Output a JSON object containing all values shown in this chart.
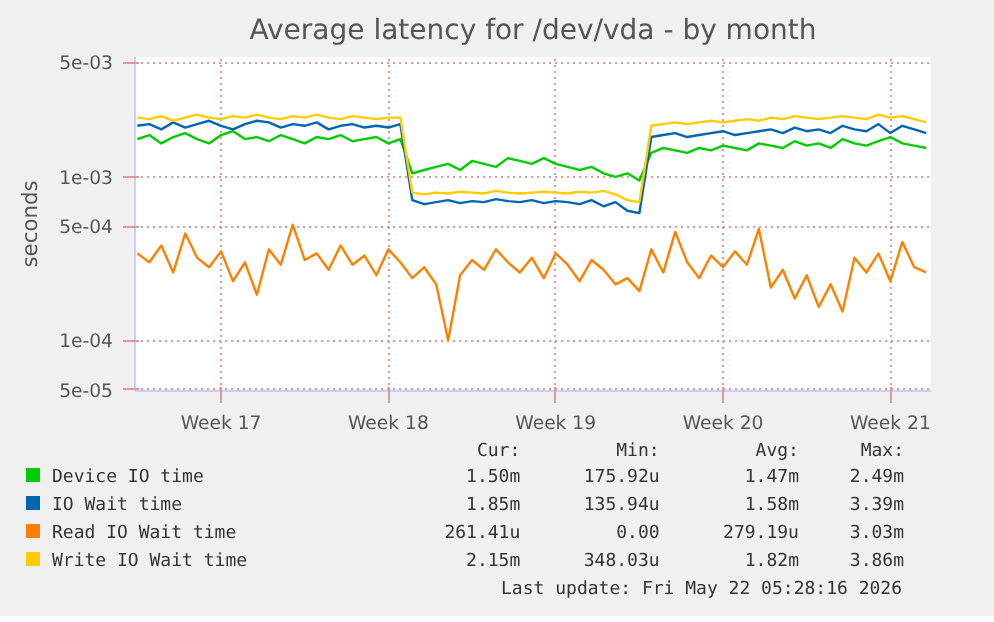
{
  "chart_data": {
    "type": "line",
    "title": "Average latency for /dev/vda - by month",
    "ylabel": "seconds",
    "categories": [
      null,
      null,
      null,
      null,
      null,
      null,
      null,
      "Week 17",
      null,
      null,
      null,
      null,
      null,
      null,
      null,
      null,
      null,
      null,
      null,
      null,
      null,
      "Week 18",
      null,
      null,
      null,
      null,
      null,
      null,
      null,
      null,
      null,
      null,
      null,
      null,
      null,
      "Week 19",
      null,
      null,
      null,
      null,
      null,
      null,
      null,
      null,
      null,
      null,
      null,
      null,
      null,
      "Week 20",
      null,
      null,
      null,
      null,
      null,
      null,
      null,
      null,
      null,
      null,
      null,
      null,
      null,
      "Week 21",
      null,
      null,
      null
    ],
    "ylim": [
      4.9e-05,
      0.0054
    ],
    "yticks": [
      {
        "value": 5e-05,
        "label": "5e-05"
      },
      {
        "value": 0.0001,
        "label": "1e-04"
      },
      {
        "value": 0.0005,
        "label": "5e-04"
      },
      {
        "value": 0.001,
        "label": "1e-03"
      },
      {
        "value": 0.005,
        "label": "5e-03"
      }
    ],
    "log": "y",
    "grid": true,
    "legend": "bottom",
    "series": [
      {
        "name": "Device IO time",
        "color": "#00cc00",
        "values": [
          0.0017,
          0.0018,
          0.0016,
          0.00175,
          0.00185,
          0.0017,
          0.0016,
          0.0018,
          0.0019,
          0.0017,
          0.00175,
          0.00165,
          0.0018,
          0.0017,
          0.0016,
          0.00175,
          0.0017,
          0.0018,
          0.00165,
          0.0017,
          0.00175,
          0.0016,
          0.0017,
          0.00105,
          0.0011,
          0.00115,
          0.0012,
          0.0011,
          0.00125,
          0.0012,
          0.00115,
          0.0013,
          0.00125,
          0.0012,
          0.0013,
          0.0012,
          0.00115,
          0.0011,
          0.00115,
          0.00105,
          0.001,
          0.00105,
          0.00095,
          0.0014,
          0.0015,
          0.00145,
          0.0014,
          0.0015,
          0.00145,
          0.00155,
          0.0015,
          0.00145,
          0.0016,
          0.00155,
          0.0015,
          0.00165,
          0.00155,
          0.0016,
          0.0015,
          0.0017,
          0.0016,
          0.00155,
          0.00165,
          0.00175,
          0.0016,
          0.00155,
          0.0015
        ]
      },
      {
        "name": "IO Wait time",
        "color": "#0066b3",
        "values": [
          0.00205,
          0.0021,
          0.00195,
          0.00215,
          0.002,
          0.0021,
          0.0022,
          0.00205,
          0.00195,
          0.0021,
          0.0022,
          0.00215,
          0.002,
          0.0021,
          0.00205,
          0.00215,
          0.00195,
          0.00205,
          0.0021,
          0.002,
          0.00205,
          0.002,
          0.0021,
          0.00072,
          0.00068,
          0.0007,
          0.00072,
          0.00069,
          0.00071,
          0.0007,
          0.00073,
          0.00071,
          0.0007,
          0.00072,
          0.00069,
          0.00071,
          0.0007,
          0.00068,
          0.00072,
          0.00066,
          0.0007,
          0.00062,
          0.0006,
          0.00175,
          0.0018,
          0.00185,
          0.00175,
          0.0018,
          0.00185,
          0.0019,
          0.0018,
          0.00185,
          0.0019,
          0.00195,
          0.00185,
          0.002,
          0.0019,
          0.00195,
          0.00185,
          0.00205,
          0.00195,
          0.0019,
          0.0021,
          0.00185,
          0.00205,
          0.00195,
          0.00185
        ]
      },
      {
        "name": "Read IO Wait time",
        "color": "#ff8000",
        "values": [
          0.00034,
          0.0003,
          0.00038,
          0.00026,
          0.00045,
          0.00032,
          0.00028,
          0.00035,
          0.00023,
          0.0003,
          0.00019,
          0.00036,
          0.00029,
          0.00051,
          0.00031,
          0.00034,
          0.00027,
          0.00038,
          0.00029,
          0.00033,
          0.00025,
          0.00036,
          0.0003,
          0.00024,
          0.00028,
          0.00022,
          0.0001,
          0.00025,
          0.00031,
          0.00027,
          0.00036,
          0.0003,
          0.00026,
          0.00032,
          0.00024,
          0.00034,
          0.00029,
          0.00023,
          0.00031,
          0.00027,
          0.00022,
          0.00024,
          0.0002,
          0.00036,
          0.00026,
          0.00046,
          0.0003,
          0.00024,
          0.00033,
          0.00028,
          0.00035,
          0.00029,
          0.00048,
          0.00021,
          0.00027,
          0.00018,
          0.00025,
          0.00016,
          0.00022,
          0.00015,
          0.00032,
          0.00026,
          0.00034,
          0.00023,
          0.0004,
          0.00028,
          0.00026
        ]
      },
      {
        "name": "Write IO Wait time",
        "color": "#ffcc00",
        "values": [
          0.0023,
          0.00225,
          0.00235,
          0.0022,
          0.0023,
          0.0024,
          0.0023,
          0.00225,
          0.00235,
          0.0023,
          0.0024,
          0.0023,
          0.00225,
          0.00235,
          0.0023,
          0.0024,
          0.0023,
          0.00225,
          0.00235,
          0.0023,
          0.00225,
          0.0023,
          0.0023,
          0.0008,
          0.00078,
          0.0008,
          0.00079,
          0.00081,
          0.0008,
          0.00079,
          0.00082,
          0.0008,
          0.00079,
          0.0008,
          0.00081,
          0.0008,
          0.00079,
          0.00081,
          0.0008,
          0.00082,
          0.00078,
          0.00072,
          0.0007,
          0.00205,
          0.0021,
          0.00215,
          0.0021,
          0.00215,
          0.0022,
          0.00215,
          0.0022,
          0.00225,
          0.0022,
          0.0023,
          0.00225,
          0.00235,
          0.0023,
          0.00225,
          0.0023,
          0.00235,
          0.0023,
          0.00225,
          0.0024,
          0.0023,
          0.00235,
          0.00225,
          0.00215
        ]
      }
    ],
    "annotations": [
      "Cur:",
      "Min:",
      "Avg:",
      "Max:",
      "1.50m",
      "175.92u",
      "1.47m",
      "2.49m",
      "1.85m",
      "135.94u",
      "1.58m",
      "3.39m",
      "261.41u",
      "0.00",
      "279.19u",
      "3.03m",
      "2.15m",
      "348.03u",
      "1.82m",
      "3.86m",
      "Last update: Fri May 22 05:28:16 2026"
    ]
  }
}
